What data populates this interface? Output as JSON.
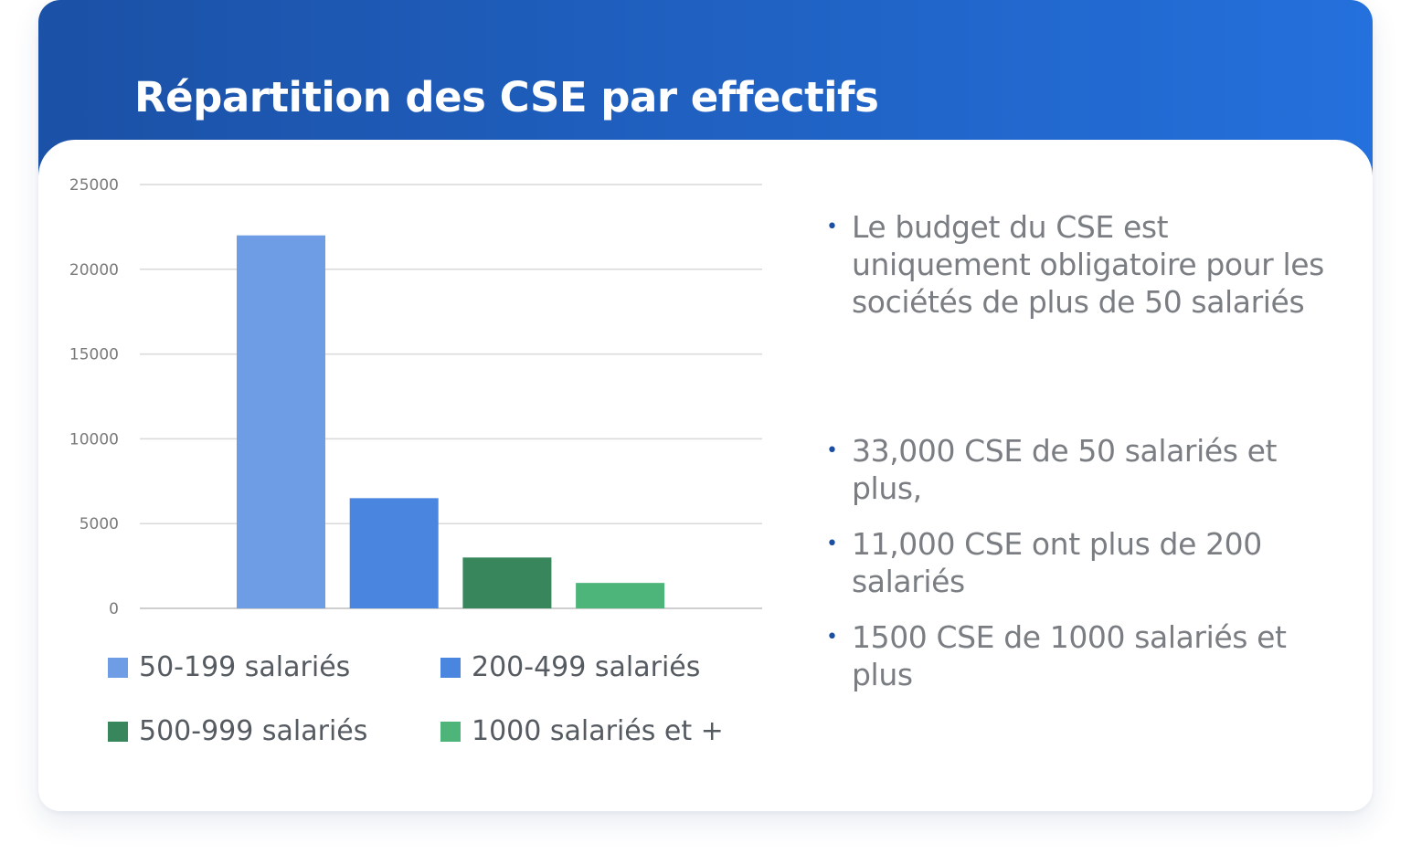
{
  "title": "Répartition des CSE par effectifs",
  "colors": {
    "header_start": "#1b51a6",
    "header_end": "#2470dc",
    "bullet": "#1d4fa0",
    "text": "#7a7d82"
  },
  "chart_data": {
    "type": "bar",
    "categories": [
      "50-199 salariés",
      "200-499 salariés",
      "500-999 salariés",
      "1000 salariés et +"
    ],
    "values": [
      22000,
      6500,
      3000,
      1500
    ],
    "colors": [
      "#6e9de6",
      "#4a86e0",
      "#38875c",
      "#4db57a"
    ],
    "ylim": [
      0,
      25000
    ],
    "yticks": [
      0,
      5000,
      10000,
      15000,
      20000,
      25000
    ],
    "grid": true,
    "legend_position": "bottom",
    "title": "",
    "xlabel": "",
    "ylabel": ""
  },
  "legend": [
    {
      "label": "50-199 salariés",
      "color": "#6e9de6"
    },
    {
      "label": "200-499 salariés",
      "color": "#4a86e0"
    },
    {
      "label": "500-999 salariés",
      "color": "#38875c"
    },
    {
      "label": "1000 salariés et +",
      "color": "#4db57a"
    }
  ],
  "notes": [
    {
      "bullet": "•",
      "text": "Le budget du CSE est uniquement obligatoire pour les sociétés de plus de 50 salariés"
    },
    {
      "bullet": "•",
      "text": "33,000 CSE de 50 salariés et plus,"
    },
    {
      "bullet": "•",
      "text": "11,000 CSE ont plus de 200 salariés"
    },
    {
      "bullet": "•",
      "text": "1500 CSE de 1000 salariés et plus"
    }
  ]
}
